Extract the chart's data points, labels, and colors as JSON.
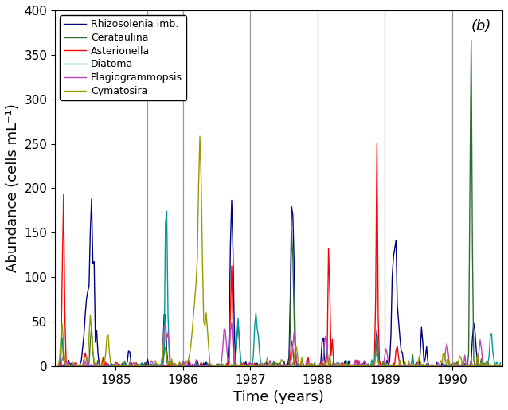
{
  "title": "(b)",
  "xlabel": "Time (years)",
  "ylabel": "Abundance (cells mL⁻¹)",
  "ylim": [
    0,
    400
  ],
  "yticks": [
    0,
    50,
    100,
    150,
    200,
    250,
    300,
    350,
    400
  ],
  "year_start": 1984.1,
  "year_end": 1990.75,
  "vline_years": [
    1985.47,
    1986.0,
    1987.0,
    1988.0,
    1989.0,
    1990.0
  ],
  "xtick_years": [
    1985,
    1986,
    1987,
    1988,
    1989,
    1990
  ],
  "species": [
    "Rhizosolenia imb.",
    "Cerataulina",
    "Asterionella",
    "Diatoma",
    "Plagiogrammopsis",
    "Cymatosira"
  ],
  "colors": [
    "#000080",
    "#2d6e2d",
    "#FF0000",
    "#009999",
    "#BB44BB",
    "#9999000"
  ],
  "linewidth": 1.0,
  "background_color": "#ffffff",
  "legend_fontsize": 9,
  "axis_fontsize": 13,
  "tick_fontsize": 11
}
